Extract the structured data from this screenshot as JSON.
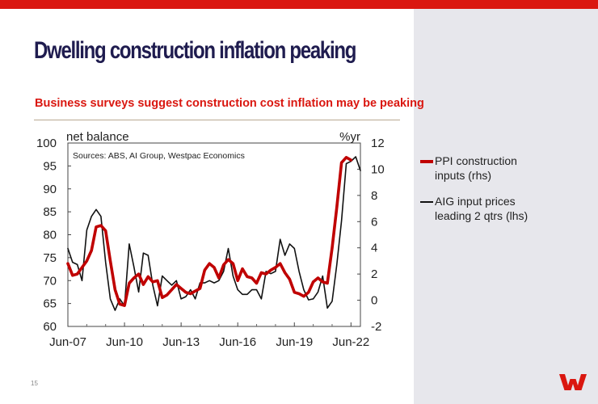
{
  "page": {
    "title": "Dwelling construction inflation peaking",
    "subtitle": "Business surveys suggest construction cost inflation may be peaking",
    "page_number": "15",
    "brand_color": "#da1710",
    "navy_color": "#1f1c4f",
    "logo_icon": "westpac-w-logo"
  },
  "chart_data": {
    "type": "line",
    "left_axis_label": "net balance",
    "right_axis_label": "%yr",
    "source_note": "Sources: ABS, AI Group, Westpac Economics",
    "x_ticks": [
      "Jun-07",
      "Jun-10",
      "Jun-13",
      "Jun-16",
      "Jun-19",
      "Jun-22"
    ],
    "x_range": [
      "Jun-07",
      "Dec-22"
    ],
    "left_ylim": [
      60,
      100
    ],
    "left_yticks": [
      "60",
      "65",
      "70",
      "75",
      "80",
      "85",
      "90",
      "95",
      "100"
    ],
    "right_ylim": [
      -2,
      12
    ],
    "right_yticks": [
      "-2",
      "0",
      "2",
      "4",
      "6",
      "8",
      "10",
      "12"
    ],
    "series": [
      {
        "name": "PPI construction inputs (rhs)",
        "axis": "right",
        "color": "#c00000",
        "x_quarters": [
          "Jun-07",
          "Sep-07",
          "Dec-07",
          "Mar-08",
          "Jun-08",
          "Sep-08",
          "Dec-08",
          "Mar-09",
          "Jun-09",
          "Sep-09",
          "Dec-09",
          "Mar-10",
          "Jun-10",
          "Sep-10",
          "Dec-10",
          "Mar-11",
          "Jun-11",
          "Sep-11",
          "Dec-11",
          "Mar-12",
          "Jun-12",
          "Sep-12",
          "Dec-12",
          "Mar-13",
          "Jun-13",
          "Sep-13",
          "Dec-13",
          "Mar-14",
          "Jun-14",
          "Sep-14",
          "Dec-14",
          "Mar-15",
          "Jun-15",
          "Sep-15",
          "Dec-15",
          "Mar-16",
          "Jun-16",
          "Sep-16",
          "Dec-16",
          "Mar-17",
          "Jun-17",
          "Sep-17",
          "Dec-17",
          "Mar-18",
          "Jun-18",
          "Sep-18",
          "Dec-18",
          "Mar-19",
          "Jun-19",
          "Sep-19",
          "Dec-19",
          "Mar-20",
          "Jun-20",
          "Sep-20",
          "Dec-20",
          "Mar-21",
          "Jun-21",
          "Sep-21",
          "Dec-21",
          "Mar-22",
          "Jun-22"
        ],
        "values": [
          2.8,
          1.9,
          2.0,
          2.5,
          3.0,
          3.8,
          5.6,
          5.7,
          5.3,
          3.0,
          0.8,
          -0.3,
          -0.4,
          1.3,
          1.7,
          2.0,
          1.2,
          1.8,
          1.4,
          1.5,
          0.2,
          0.4,
          0.8,
          1.2,
          0.9,
          0.6,
          0.5,
          0.7,
          0.9,
          2.3,
          2.8,
          2.5,
          1.7,
          2.7,
          3.1,
          2.8,
          1.5,
          2.4,
          1.8,
          1.7,
          1.3,
          2.1,
          2.0,
          2.3,
          2.5,
          2.8,
          2.1,
          1.6,
          0.6,
          0.5,
          0.3,
          0.6,
          1.4,
          1.7,
          1.4,
          1.3,
          4.0,
          7.1,
          10.5,
          10.9,
          10.7
        ]
      },
      {
        "name": "AIG input prices leading 2 qtrs (lhs)",
        "axis": "left",
        "color": "#111111",
        "x_quarters": [
          "Jun-07",
          "Sep-07",
          "Dec-07",
          "Mar-08",
          "Jun-08",
          "Sep-08",
          "Dec-08",
          "Mar-09",
          "Jun-09",
          "Sep-09",
          "Dec-09",
          "Mar-10",
          "Jun-10",
          "Sep-10",
          "Dec-10",
          "Mar-11",
          "Jun-11",
          "Sep-11",
          "Dec-11",
          "Mar-12",
          "Jun-12",
          "Sep-12",
          "Dec-12",
          "Mar-13",
          "Jun-13",
          "Sep-13",
          "Dec-13",
          "Mar-14",
          "Jun-14",
          "Sep-14",
          "Dec-14",
          "Mar-15",
          "Jun-15",
          "Sep-15",
          "Dec-15",
          "Mar-16",
          "Jun-16",
          "Sep-16",
          "Dec-16",
          "Mar-17",
          "Jun-17",
          "Sep-17",
          "Dec-17",
          "Mar-18",
          "Jun-18",
          "Sep-18",
          "Dec-18",
          "Mar-19",
          "Jun-19",
          "Sep-19",
          "Dec-19",
          "Mar-20",
          "Jun-20",
          "Sep-20",
          "Dec-20",
          "Mar-21",
          "Jun-21",
          "Sep-21",
          "Dec-21",
          "Mar-22",
          "Jun-22",
          "Sep-22",
          "Dec-22"
        ],
        "values": [
          77,
          74,
          73.5,
          70,
          81,
          84,
          85.5,
          84,
          74,
          66,
          63.5,
          66,
          64.5,
          78,
          73,
          67.5,
          76,
          75.5,
          69,
          64.5,
          71,
          70,
          69,
          70,
          66,
          66.5,
          68,
          66,
          69.5,
          69.5,
          70,
          69.5,
          70,
          72,
          77,
          71,
          68,
          67,
          67,
          68,
          68,
          66,
          72,
          71.5,
          72,
          79,
          75.5,
          78,
          77,
          72,
          68,
          65.8,
          66,
          67.5,
          71,
          64,
          65.5,
          73.5,
          83,
          95.5,
          96,
          97,
          94
        ]
      }
    ]
  },
  "legend": {
    "items": [
      {
        "label": "PPI construction inputs (rhs)",
        "color": "#c00000",
        "style": "thick"
      },
      {
        "label": "AIG input prices leading 2 qtrs (lhs)",
        "color": "#111111",
        "style": "thin"
      }
    ]
  }
}
